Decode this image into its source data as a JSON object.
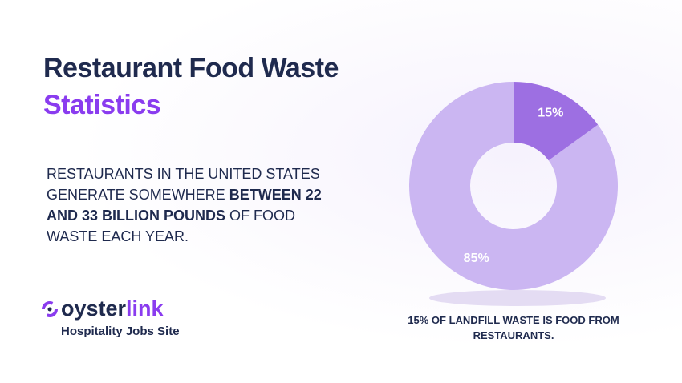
{
  "header": {
    "title_line1": "Restaurant Food Waste",
    "title_line2": "Statistics"
  },
  "body": [
    {
      "text": "RESTAURANTS IN THE UNITED STATES GENERATE SOMEWHERE ",
      "bold": false
    },
    {
      "text": "BETWEEN 22 AND 33 BILLION POUNDS",
      "bold": true
    },
    {
      "text": " OF FOOD WASTE EACH YEAR.",
      "bold": false
    }
  ],
  "logo": {
    "part1": "oyster",
    "part2": "link",
    "tagline": "Hospitality Jobs Site"
  },
  "chart_data": {
    "type": "donut",
    "values": [
      85,
      15
    ],
    "value_labels": [
      "85%",
      "15%"
    ],
    "colors": [
      "#cbb6f2",
      "#9d6fe2"
    ],
    "annotation": "15% OF LANDFILL WASTE IS FOOD FROM RESTAURANTS."
  }
}
